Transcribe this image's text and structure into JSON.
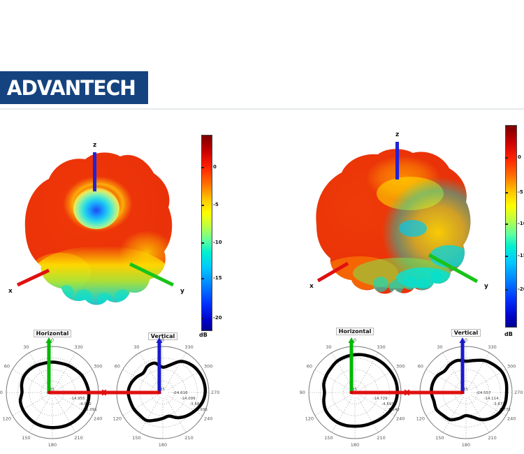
{
  "logo": {
    "text": "ADVANTECH"
  },
  "axes3d": {
    "z": "z",
    "x": "x",
    "y": "y"
  },
  "colorbars": {
    "left": {
      "ticks": [
        "0",
        "-5",
        "-10",
        "-15",
        "-20"
      ],
      "unit": "dB"
    },
    "right": {
      "ticks": [
        "0",
        "-5",
        "-10",
        "-15",
        "-20"
      ],
      "unit": "dB"
    }
  },
  "chart_data": [
    {
      "type": "surface3d",
      "position": "top-left",
      "axis_labels": {
        "x": "x",
        "y": "y",
        "z": "z"
      },
      "colorbar": {
        "unit": "dB",
        "ticks": [
          0,
          -5,
          -10,
          -15,
          -20
        ]
      },
      "description": "3D antenna radiation pattern, near-spherical shell around 0 dB (red) with a -15 to -20 dB null (blue/cyan dimple) near zenith and -5 to -12 dB ripple lobes (yellow/green/cyan) underneath"
    },
    {
      "type": "surface3d",
      "position": "top-right",
      "axis_labels": {
        "x": "x",
        "y": "y",
        "z": "z"
      },
      "colorbar": {
        "unit": "dB",
        "ticks": [
          0,
          -5,
          -10,
          -15,
          -20
        ]
      },
      "description": "3D antenna radiation pattern, red 0 dB shell on x-side with -5 to -15 dB scalloped lobes (yellow/green/cyan) on the y-side and underneath"
    },
    {
      "type": "polar",
      "id": "left-horizontal",
      "title": "Horizontal",
      "angle_labels": [
        "0",
        "30",
        "60",
        "90",
        "120",
        "150",
        "180",
        "210",
        "240",
        "270",
        "300",
        "330"
      ],
      "center_label": "-35",
      "ring_labels": [
        "-24.977",
        "-14.955",
        "-4.932",
        "5.091"
      ],
      "scale_db": {
        "center": -35,
        "outer": 5.091
      },
      "samples_deg_step": 15,
      "r_frac": [
        0.66,
        0.66,
        0.68,
        0.7,
        0.71,
        0.69,
        0.66,
        0.72,
        0.74,
        0.75,
        0.76,
        0.76,
        0.76,
        0.77,
        0.78,
        0.79,
        0.8,
        0.8,
        0.79,
        0.76,
        0.74,
        0.7,
        0.68,
        0.66
      ]
    },
    {
      "type": "polar",
      "id": "left-vertical",
      "title": "Vertical",
      "angle_labels": [
        "0",
        "30",
        "60",
        "90",
        "120",
        "150",
        "180",
        "210",
        "240",
        "270",
        "300",
        "330"
      ],
      "center_label": "-35",
      "ring_labels": [
        "-24.616",
        "-14.099",
        "-3.581",
        "6.936"
      ],
      "scale_db": {
        "center": -35,
        "outer": 6.936
      },
      "samples_deg_step": 15,
      "r_frac": [
        0.55,
        0.66,
        0.66,
        0.6,
        0.66,
        0.72,
        0.75,
        0.73,
        0.72,
        0.7,
        0.7,
        0.62,
        0.56,
        0.53,
        0.63,
        0.72,
        0.8,
        0.88,
        0.92,
        0.92,
        0.9,
        0.86,
        0.78,
        0.62
      ]
    },
    {
      "type": "polar",
      "id": "right-horizontal",
      "title": "Horizontal",
      "angle_labels": [
        "0",
        "30",
        "60",
        "90",
        "120",
        "150",
        "180",
        "210",
        "240",
        "270",
        "300",
        "330"
      ],
      "center_label": "-35",
      "ring_labels": [
        "-24.864",
        "-14.729",
        "-4.593",
        "5.542"
      ],
      "scale_db": {
        "center": -35,
        "outer": 5.542
      },
      "samples_deg_step": 15,
      "r_frac": [
        0.82,
        0.8,
        0.78,
        0.74,
        0.72,
        0.7,
        0.66,
        0.7,
        0.74,
        0.75,
        0.75,
        0.74,
        0.73,
        0.74,
        0.76,
        0.8,
        0.85,
        0.9,
        0.92,
        0.92,
        0.9,
        0.88,
        0.86,
        0.84
      ]
    },
    {
      "type": "polar",
      "id": "right-vertical",
      "title": "Vertical",
      "angle_labels": [
        "0",
        "30",
        "60",
        "90",
        "120",
        "150",
        "180",
        "210",
        "240",
        "270",
        "300",
        "330"
      ],
      "center_label": "-35",
      "ring_labels": [
        "-24.557",
        "-14.114",
        "-3.671",
        "6.772"
      ],
      "scale_db": {
        "center": -35,
        "outer": 6.772
      },
      "samples_deg_step": 15,
      "r_frac": [
        0.68,
        0.72,
        0.7,
        0.66,
        0.72,
        0.75,
        0.75,
        0.72,
        0.74,
        0.7,
        0.68,
        0.58,
        0.5,
        0.55,
        0.68,
        0.78,
        0.85,
        0.88,
        0.88,
        0.9,
        0.9,
        0.85,
        0.8,
        0.72
      ]
    }
  ],
  "colors": {
    "logo_bg": "#15437f",
    "axis_red": "#e01010",
    "axis_green": "#00b800",
    "axis_blue": "#1a1acc",
    "pattern_curve": "#000000"
  }
}
